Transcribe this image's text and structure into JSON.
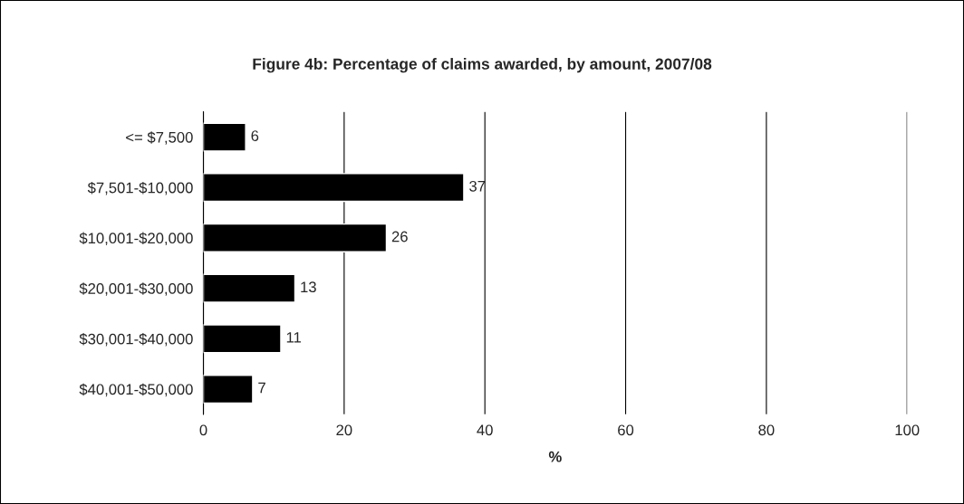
{
  "chart_data": {
    "type": "bar",
    "orientation": "horizontal",
    "title": "Figure 4b: Percentage of claims awarded, by amount, 2007/08",
    "xlabel": "%",
    "categories": [
      "<= $7,500",
      "$7,501-$10,000",
      "$10,001-$20,000",
      "$20,001-$30,000",
      "$30,001-$40,000",
      "$40,001-$50,000"
    ],
    "values": [
      6,
      37,
      26,
      13,
      11,
      7
    ],
    "color": "#000000",
    "xlim": [
      0,
      100
    ],
    "xticks": [
      0,
      20,
      40,
      60,
      80,
      100
    ],
    "grid": "x",
    "data_labels": true
  }
}
